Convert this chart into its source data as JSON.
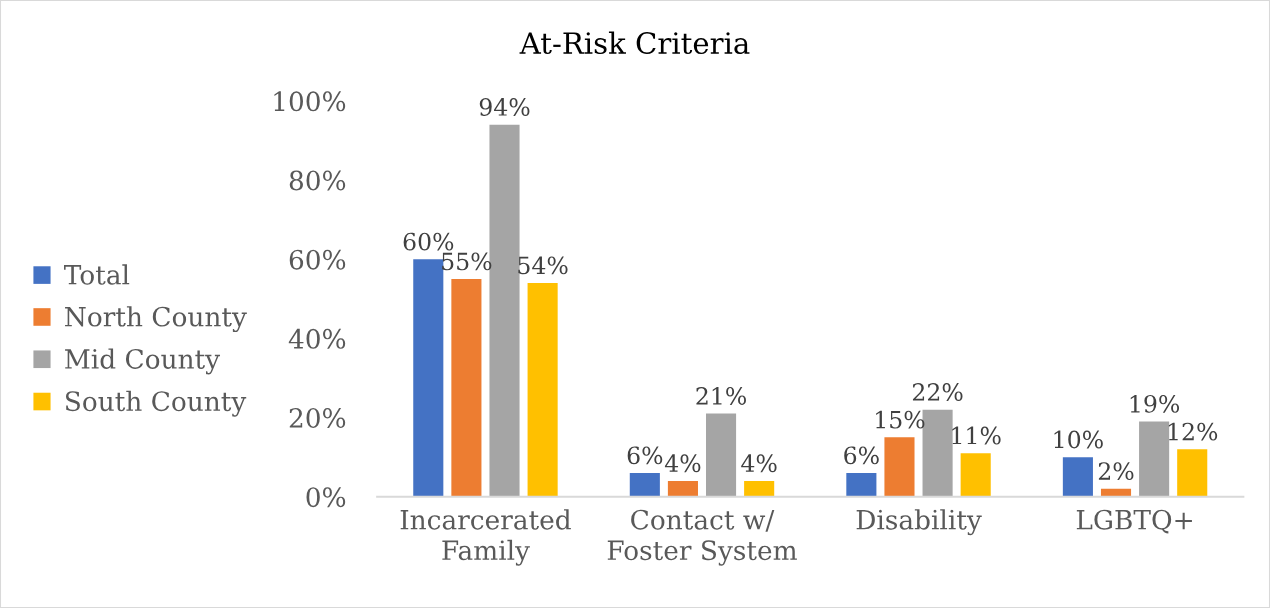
{
  "chart_data": {
    "type": "bar",
    "title": "At-Risk Criteria",
    "categories": [
      "Incarcerated\nFamily",
      "Contact w/\nFoster System",
      "Disability",
      "LGBTQ+"
    ],
    "series": [
      {
        "name": "Total",
        "color": "#4472c4",
        "values": [
          60,
          6,
          6,
          10
        ],
        "value_labels": [
          "60%",
          "6%",
          "6%",
          "10%"
        ]
      },
      {
        "name": "North County",
        "color": "#ed7d31",
        "values": [
          55,
          4,
          15,
          2
        ],
        "value_labels": [
          "55%",
          "4%",
          "15%",
          "2%"
        ]
      },
      {
        "name": "Mid County",
        "color": "#a5a5a5",
        "values": [
          94,
          21,
          22,
          19
        ],
        "value_labels": [
          "94%",
          "21%",
          "22%",
          "19%"
        ]
      },
      {
        "name": "South County",
        "color": "#ffc000",
        "values": [
          54,
          4,
          11,
          12
        ],
        "value_labels": [
          "54%",
          "4%",
          "11%",
          "12%"
        ]
      }
    ],
    "ylim": [
      0,
      100
    ],
    "yticks": [
      {
        "value": 0,
        "label": "0%"
      },
      {
        "value": 20,
        "label": "20%"
      },
      {
        "value": 40,
        "label": "40%"
      },
      {
        "value": 60,
        "label": "60%"
      },
      {
        "value": 80,
        "label": "80%"
      },
      {
        "value": 100,
        "label": "100%"
      }
    ],
    "grid": false,
    "legend": "left"
  }
}
